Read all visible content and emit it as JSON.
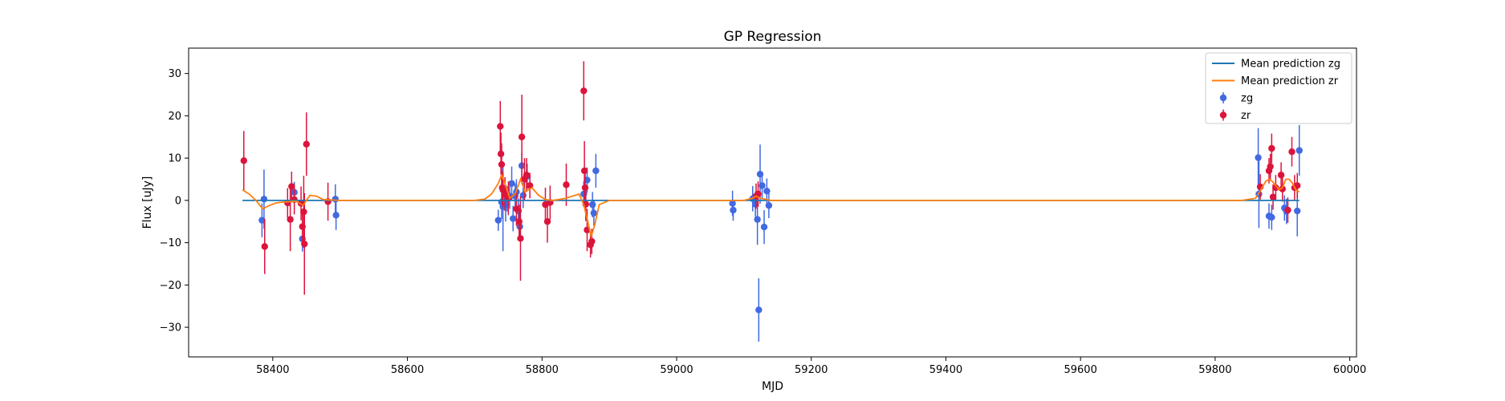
{
  "chart_data": {
    "type": "scatter",
    "title": "GP Regression",
    "xlabel": "MJD",
    "ylabel": "Flux [uJy]",
    "xlim": [
      58275,
      60010
    ],
    "ylim": [
      -37,
      36
    ],
    "xticks": [
      58400,
      58600,
      58800,
      59000,
      59200,
      59400,
      59600,
      59800,
      60000
    ],
    "yticks": [
      -30,
      -20,
      -10,
      0,
      10,
      20,
      30
    ],
    "grid": false,
    "legend_position": "top-right",
    "legend": [
      {
        "label": "Mean prediction zg",
        "kind": "line",
        "color": "#1f77b4"
      },
      {
        "label": "Mean prediction zr",
        "kind": "line",
        "color": "#ff7f0e"
      },
      {
        "label": "zg",
        "kind": "errorbar",
        "color": "#4169e1"
      },
      {
        "label": "zr",
        "kind": "errorbar",
        "color": "#dc143c"
      }
    ],
    "lines": [
      {
        "name": "Mean prediction zg",
        "color": "#1f77b4",
        "x": [
          58355,
          58440,
          58470,
          58720,
          58880,
          58900,
          59080,
          59140,
          59860,
          59925
        ],
        "y": [
          0,
          0,
          0,
          0,
          0,
          0,
          0,
          0,
          0,
          0
        ]
      },
      {
        "name": "Mean prediction zr",
        "color": "#ff7f0e",
        "x": [
          58355,
          58365,
          58375,
          58385,
          58395,
          58405,
          58415,
          58425,
          58435,
          58445,
          58455,
          58465,
          58475,
          58500,
          58600,
          58700,
          58715,
          58725,
          58735,
          58740,
          58745,
          58752,
          58760,
          58768,
          58775,
          58785,
          58795,
          58805,
          58815,
          58825,
          58835,
          58845,
          58855,
          58862,
          58868,
          58873,
          58878,
          58885,
          58900,
          59000,
          59100,
          59112,
          59118,
          59125,
          59140,
          59200,
          59500,
          59840,
          59860,
          59868,
          59875,
          59880,
          59885,
          59890,
          59895,
          59900,
          59905,
          59910,
          59915,
          59920,
          59925
        ],
        "y": [
          2.5,
          1.5,
          0.0,
          -2.0,
          -1.2,
          -0.6,
          -0.4,
          -0.3,
          -0.2,
          -1.2,
          1.2,
          1.0,
          0.2,
          0,
          0,
          0,
          0.3,
          1.5,
          4.0,
          6.0,
          4.0,
          0.5,
          1.5,
          5.0,
          2.0,
          3.0,
          1.2,
          0.2,
          0.0,
          0.2,
          0.5,
          1.0,
          1.5,
          -1.0,
          -5.0,
          -8.5,
          -6.0,
          -1.0,
          0,
          0,
          0,
          0.5,
          1.0,
          0.5,
          0,
          0,
          0,
          0,
          0.5,
          2.5,
          4.5,
          5.0,
          4.5,
          3.5,
          2.5,
          3.0,
          5.0,
          5.0,
          4.0,
          2.5,
          2.0
        ]
      }
    ],
    "series": [
      {
        "name": "zg",
        "color": "#4169e1",
        "x": [
          58384,
          58387,
          58432,
          58444,
          58493,
          58494,
          58735,
          58740,
          58742,
          58746,
          58748,
          58752,
          58755,
          58757,
          58760,
          58762,
          58765,
          58767,
          58770,
          58772,
          58778,
          58862,
          58867,
          58875,
          58877,
          58880,
          59083,
          59084,
          59113,
          59117,
          59120,
          59122,
          59124,
          59127,
          59130,
          59134,
          59137,
          59864,
          59865,
          59880,
          59884,
          59903,
          59906,
          59922,
          59925
        ],
        "y": [
          -4.7,
          0.3,
          1.9,
          -9.1,
          0.3,
          -3.5,
          -4.7,
          -0.4,
          -1.5,
          -1.0,
          0.4,
          1.0,
          4.0,
          -4.3,
          1.0,
          2.0,
          -2.5,
          -6.2,
          8.2,
          1.2,
          5.7,
          1.5,
          4.8,
          -1.0,
          -3.0,
          7.0,
          -0.7,
          -2.3,
          0.4,
          -0.9,
          -4.5,
          -25.9,
          6.2,
          3.5,
          -6.3,
          2.2,
          -1.2,
          10.1,
          1.5,
          -3.7,
          -4.0,
          -1.8,
          -2.6,
          -2.5,
          11.8
        ],
        "err": [
          4.0,
          7.0,
          2.5,
          3.0,
          3.5,
          3.5,
          2.5,
          4.0,
          10.5,
          4.0,
          3.0,
          3.0,
          4.0,
          3.0,
          3.0,
          3.0,
          3.0,
          3.0,
          3.0,
          3.0,
          3.0,
          3.0,
          3.0,
          3.0,
          3.0,
          4.0,
          3.0,
          2.5,
          3.0,
          3.0,
          6.0,
          7.5,
          7.0,
          3.0,
          4.0,
          3.0,
          3.0,
          7.0,
          8.0,
          3.0,
          3.0,
          3.0,
          3.0,
          6.0,
          6.0
        ]
      },
      {
        "name": "zr",
        "color": "#dc143c",
        "x": [
          58357,
          58388,
          58422,
          58426,
          58428,
          58432,
          58442,
          58444,
          58446,
          58447,
          58450,
          58482,
          58738,
          58739,
          58740,
          58741,
          58742,
          58745,
          58750,
          58762,
          58766,
          58768,
          58770,
          58774,
          58777,
          58782,
          58805,
          58808,
          58812,
          58836,
          58862,
          58863,
          58864,
          58865,
          58867,
          58872,
          58874,
          59118,
          59121,
          59867,
          59880,
          59882,
          59884,
          59886,
          59890,
          59898,
          59900,
          59908,
          59914,
          59918,
          59922
        ],
        "y": [
          9.4,
          -10.9,
          -0.6,
          -4.5,
          3.3,
          0.2,
          -0.7,
          -6.2,
          -2.7,
          -10.3,
          13.3,
          -0.3,
          17.5,
          11.0,
          8.5,
          3.0,
          2.5,
          1.5,
          0.5,
          -2.0,
          -5.0,
          -9.0,
          15.0,
          5.0,
          6.0,
          3.5,
          -1.0,
          -5.0,
          -0.5,
          3.7,
          25.9,
          7.0,
          3.0,
          -0.9,
          -7.0,
          -10.5,
          -9.7,
          1.0,
          1.5,
          3.2,
          7.0,
          8.0,
          12.3,
          0.8,
          3.0,
          6.0,
          2.7,
          -2.3,
          11.5,
          3.0,
          3.5
        ],
        "err": [
          7.0,
          6.5,
          3.5,
          7.5,
          3.5,
          3.5,
          4.0,
          4.0,
          8.5,
          12.0,
          7.5,
          4.5,
          6.0,
          5.0,
          5.0,
          4.0,
          4.0,
          4.0,
          4.0,
          4.0,
          4.0,
          10.0,
          10.0,
          5.0,
          4.0,
          3.0,
          4.0,
          5.0,
          4.0,
          5.0,
          7.0,
          7.0,
          4.0,
          4.0,
          5.0,
          3.0,
          3.0,
          3.0,
          3.0,
          3.0,
          3.0,
          3.0,
          3.5,
          3.0,
          3.0,
          3.0,
          3.0,
          3.0,
          3.5,
          3.0,
          3.0
        ]
      }
    ]
  }
}
